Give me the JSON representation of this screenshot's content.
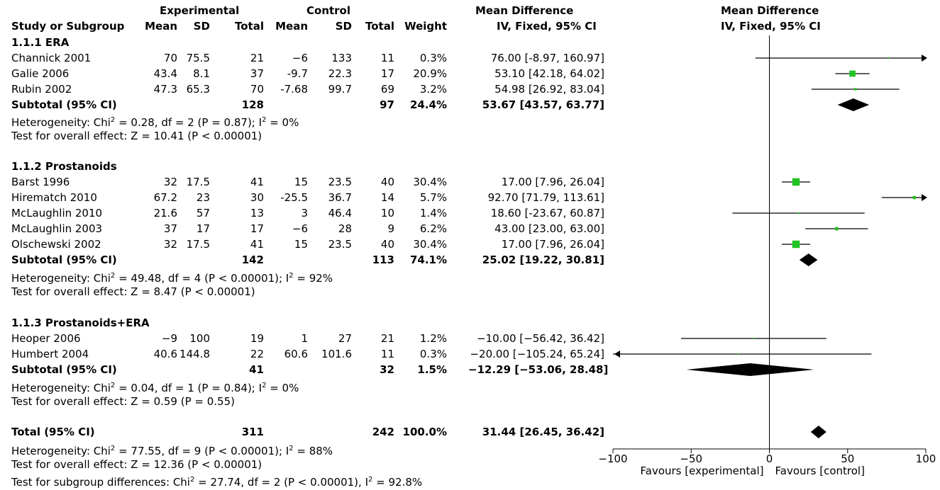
{
  "header": {
    "experimental": "Experimental",
    "control": "Control",
    "mean_difference": "Mean Difference",
    "method": "IV, Fixed, 95% CI",
    "plot_title": "Mean Difference",
    "plot_method": "IV, Fixed, 95% CI",
    "cols": {
      "study": "Study or Subgroup",
      "e_mean": "Mean",
      "e_sd": "SD",
      "e_total": "Total",
      "c_mean": "Mean",
      "c_sd": "SD",
      "c_total": "Total",
      "weight": "Weight"
    }
  },
  "groups": [
    {
      "title": "1.1.1 ERA",
      "studies": [
        {
          "name": "Channick 2001",
          "e_mean": "70",
          "e_sd": "75.5",
          "e_total": "21",
          "c_mean": "−6",
          "c_sd": "133",
          "c_total": "11",
          "weight": "0.3%",
          "ci_text": "76.00 [-8.97, 160.97]"
        },
        {
          "name": "Galie 2006",
          "e_mean": "43.4",
          "e_sd": "8.1",
          "e_total": "37",
          "c_mean": "-9.7",
          "c_sd": "22.3",
          "c_total": "17",
          "weight": "20.9%",
          "ci_text": "53.10 [42.18, 64.02]"
        },
        {
          "name": "Rubin 2002",
          "e_mean": "47.3",
          "e_sd": "65.3",
          "e_total": "70",
          "c_mean": "-7.68",
          "c_sd": "99.7",
          "c_total": "69",
          "weight": "3.2%",
          "ci_text": "54.98 [26.92, 83.04]"
        }
      ],
      "subtotal": {
        "label": "Subtotal (95% CI)",
        "e_total": "128",
        "c_total": "97",
        "weight": "24.4%",
        "ci_text": "53.67 [43.57, 63.77]"
      },
      "heterogeneity": {
        "pre": "Heterogeneity: Chi",
        "mid": " = 0.28, df = 2 (P = 0.87); I",
        "post": " = 0%"
      },
      "overall": "Test for overall effect: Z = 10.41 (P < 0.00001)"
    },
    {
      "title": "1.1.2 Prostanoids",
      "studies": [
        {
          "name": "Barst 1996",
          "e_mean": "32",
          "e_sd": "17.5",
          "e_total": "41",
          "c_mean": "15",
          "c_sd": "23.5",
          "c_total": "40",
          "weight": "30.4%",
          "ci_text": "17.00 [7.96, 26.04]"
        },
        {
          "name": "Hirematch 2010",
          "e_mean": "67.2",
          "e_sd": "23",
          "e_total": "30",
          "c_mean": "-25.5",
          "c_sd": "36.7",
          "c_total": "14",
          "weight": "5.7%",
          "ci_text": "92.70 [71.79, 113.61]"
        },
        {
          "name": "McLaughlin 2010",
          "e_mean": "21.6",
          "e_sd": "57",
          "e_total": "13",
          "c_mean": "3",
          "c_sd": "46.4",
          "c_total": "10",
          "weight": "1.4%",
          "ci_text": "18.60 [-23.67, 60.87]"
        },
        {
          "name": "McLaughlin 2003",
          "e_mean": "37",
          "e_sd": "17",
          "e_total": "17",
          "c_mean": "−6",
          "c_sd": "28",
          "c_total": "9",
          "weight": "6.2%",
          "ci_text": "43.00 [23.00, 63.00]"
        },
        {
          "name": "Olschewski 2002",
          "e_mean": "32",
          "e_sd": "17.5",
          "e_total": "41",
          "c_mean": "15",
          "c_sd": "23.5",
          "c_total": "40",
          "weight": "30.4%",
          "ci_text": "17.00 [7.96, 26.04]"
        }
      ],
      "subtotal": {
        "label": "Subtotal (95% CI)",
        "e_total": "142",
        "c_total": "113",
        "weight": "74.1%",
        "ci_text": "25.02 [19.22, 30.81]"
      },
      "heterogeneity": {
        "pre": "Heterogeneity: Chi",
        "mid": " = 49.48, df = 4 (P < 0.00001); I",
        "post": " = 92%"
      },
      "overall": "Test for overall effect: Z = 8.47 (P < 0.00001)"
    },
    {
      "title": "1.1.3 Prostanoids+ERA",
      "studies": [
        {
          "name": "Heoper 2006",
          "e_mean": "−9",
          "e_sd": "100",
          "e_total": "19",
          "c_mean": "1",
          "c_sd": "27",
          "c_total": "21",
          "weight": "1.2%",
          "ci_text": "−10.00 [−56.42, 36.42]"
        },
        {
          "name": "Humbert 2004",
          "e_mean": "40.6",
          "e_sd": "144.8",
          "e_total": "22",
          "c_mean": "60.6",
          "c_sd": "101.6",
          "c_total": "11",
          "weight": "0.3%",
          "ci_text": "−20.00 [−105.24, 65.24]"
        }
      ],
      "subtotal": {
        "label": "Subtotal (95% CI)",
        "e_total": "41",
        "c_total": "32",
        "weight": "1.5%",
        "ci_text": "−12.29 [−53.06, 28.48]"
      },
      "heterogeneity": {
        "pre": "Heterogeneity: Chi",
        "mid": " = 0.04, df = 1 (P = 0.84); I",
        "post": " = 0%"
      },
      "overall": "Test for overall effect: Z = 0.59 (P = 0.55)"
    }
  ],
  "total": {
    "label": "Total (95% CI)",
    "e_total": "311",
    "c_total": "242",
    "weight": "100.0%",
    "ci_text": "31.44 [26.45, 36.42]"
  },
  "footer": {
    "heterogeneity": {
      "pre": "Heterogeneity: Chi",
      "mid": " = 77.55, df = 9 (P < 0.00001); I",
      "post": " = 88%"
    },
    "overall": "Test for overall effect: Z = 12.36 (P < 0.00001)",
    "subgroup": {
      "pre": "Test for subgroup differences: Chi",
      "mid": " = 27.74, df = 2 (P < 0.00001), I",
      "post": " = 92.8%"
    },
    "sup": "2"
  },
  "axis": {
    "ticks": [
      "−100",
      "−50",
      "0",
      "50",
      "100"
    ],
    "favours_left": "Favours [experimental]",
    "favours_right": "Favours [control]"
  },
  "colors": {
    "marker": "#22c322",
    "line": "#000000",
    "diamond": "#000000"
  },
  "chart_data": {
    "type": "forest",
    "x_range": [
      -100,
      100
    ],
    "studies": [
      {
        "name": "Channick 2001",
        "md": 76.0,
        "lo": -8.97,
        "hi": 160.97,
        "weight": 0.3
      },
      {
        "name": "Galie 2006",
        "md": 53.1,
        "lo": 42.18,
        "hi": 64.02,
        "weight": 20.9
      },
      {
        "name": "Rubin 2002",
        "md": 54.98,
        "lo": 26.92,
        "hi": 83.04,
        "weight": 3.2
      },
      {
        "name": "Barst 1996",
        "md": 17.0,
        "lo": 7.96,
        "hi": 26.04,
        "weight": 30.4
      },
      {
        "name": "Hirematch 2010",
        "md": 92.7,
        "lo": 71.79,
        "hi": 113.61,
        "weight": 5.7
      },
      {
        "name": "McLaughlin 2010",
        "md": 18.6,
        "lo": -23.67,
        "hi": 60.87,
        "weight": 1.4
      },
      {
        "name": "McLaughlin 2003",
        "md": 43.0,
        "lo": 23.0,
        "hi": 63.0,
        "weight": 6.2
      },
      {
        "name": "Olschewski 2002",
        "md": 17.0,
        "lo": 7.96,
        "hi": 26.04,
        "weight": 30.4
      },
      {
        "name": "Heoper 2006",
        "md": -10.0,
        "lo": -56.42,
        "hi": 36.42,
        "weight": 1.2
      },
      {
        "name": "Humbert 2004",
        "md": -20.0,
        "lo": -105.24,
        "hi": 65.24,
        "weight": 0.3
      }
    ],
    "subtotals": [
      {
        "label": "1.1.1 ERA",
        "md": 53.67,
        "lo": 43.57,
        "hi": 63.77
      },
      {
        "label": "1.1.2 Prostanoids",
        "md": 25.02,
        "lo": 19.22,
        "hi": 30.81
      },
      {
        "label": "1.1.3 Prostanoids+ERA",
        "md": -12.29,
        "lo": -53.06,
        "hi": 28.48
      }
    ],
    "total": {
      "md": 31.44,
      "lo": 26.45,
      "hi": 36.42
    }
  }
}
